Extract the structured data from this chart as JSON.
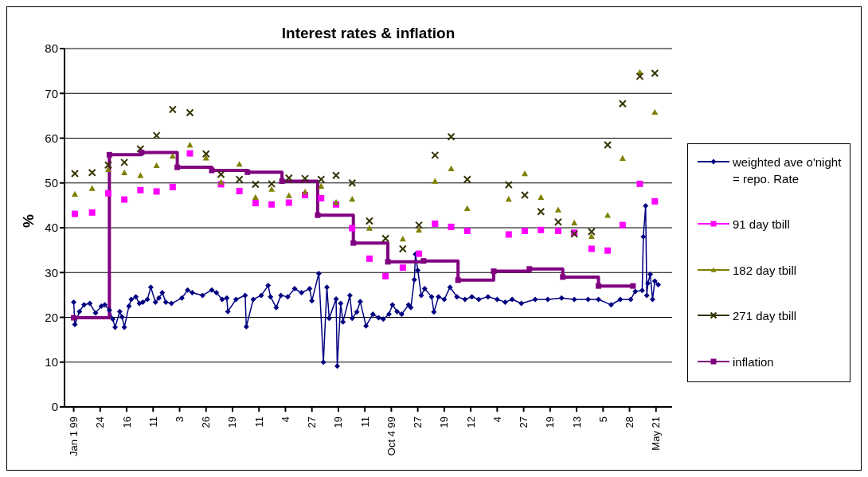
{
  "chart_data": {
    "type": "line",
    "title": "Interest rates & inflation",
    "ylabel": "%",
    "xlim": [
      "1998-12-24",
      "2000-06-04"
    ],
    "xticks": [
      {
        "value": "1999-01-01",
        "label": "Jan 1 99"
      },
      {
        "value": "1999-01-24",
        "label": "24"
      },
      {
        "value": "1999-02-16",
        "label": "16"
      },
      {
        "value": "1999-03-11",
        "label": "11"
      },
      {
        "value": "1999-04-03",
        "label": "3"
      },
      {
        "value": "1999-04-26",
        "label": "26"
      },
      {
        "value": "1999-05-19",
        "label": "19"
      },
      {
        "value": "1999-06-11",
        "label": "11"
      },
      {
        "value": "1999-07-04",
        "label": "4"
      },
      {
        "value": "1999-07-27",
        "label": "27"
      },
      {
        "value": "1999-08-19",
        "label": "19"
      },
      {
        "value": "1999-09-11",
        "label": "11"
      },
      {
        "value": "1999-10-04",
        "label": "Oct 4 99"
      },
      {
        "value": "1999-10-27",
        "label": "27"
      },
      {
        "value": "1999-11-19",
        "label": "19"
      },
      {
        "value": "1999-12-12",
        "label": "12"
      },
      {
        "value": "2000-01-04",
        "label": "4"
      },
      {
        "value": "2000-01-27",
        "label": "27"
      },
      {
        "value": "2000-02-19",
        "label": "19"
      },
      {
        "value": "2000-03-13",
        "label": "13"
      },
      {
        "value": "2000-04-05",
        "label": "5"
      },
      {
        "value": "2000-04-28",
        "label": "28"
      },
      {
        "value": "2000-05-21",
        "label": "May 21"
      }
    ],
    "ylim": [
      0,
      80
    ],
    "yticks": [
      0,
      10,
      20,
      30,
      40,
      50,
      60,
      70,
      80
    ],
    "grid": "y",
    "legend": "right",
    "series": [
      {
        "name": "weighted ave o'night = repo. Rate",
        "type": "line",
        "marker": "diamond",
        "color": "#000080",
        "x": [
          "1999-01-01",
          "1999-01-02",
          "1999-01-06",
          "1999-01-10",
          "1999-01-15",
          "1999-01-20",
          "1999-01-25",
          "1999-01-28",
          "1999-02-01",
          "1999-02-04",
          "1999-02-06",
          "1999-02-10",
          "1999-02-12",
          "1999-02-14",
          "1999-02-18",
          "1999-02-20",
          "1999-02-24",
          "1999-02-27",
          "1999-03-02",
          "1999-03-06",
          "1999-03-09",
          "1999-03-13",
          "1999-03-16",
          "1999-03-19",
          "1999-03-22",
          "1999-03-27",
          "1999-04-05",
          "1999-04-10",
          "1999-04-14",
          "1999-04-23",
          "1999-05-01",
          "1999-05-05",
          "1999-05-10",
          "1999-05-14",
          "1999-05-15",
          "1999-05-22",
          "1999-05-30",
          "1999-05-31",
          "1999-06-06",
          "1999-06-13",
          "1999-06-19",
          "1999-06-21",
          "1999-06-26",
          "1999-06-30",
          "1999-07-06",
          "1999-07-12",
          "1999-07-18",
          "1999-07-25",
          "1999-07-27",
          "1999-08-02",
          "1999-08-06",
          "1999-08-09",
          "1999-08-11",
          "1999-08-17",
          "1999-08-18",
          "1999-08-21",
          "1999-08-23",
          "1999-08-29",
          "1999-08-31",
          "1999-09-04",
          "1999-09-07",
          "1999-09-12",
          "1999-09-18",
          "1999-09-23",
          "1999-09-27",
          "1999-10-02",
          "1999-10-05",
          "1999-10-09",
          "1999-10-13",
          "1999-10-19",
          "1999-10-21",
          "1999-10-24",
          "1999-10-25",
          "1999-10-27",
          "1999-10-30",
          "1999-11-02",
          "1999-11-08",
          "1999-11-10",
          "1999-11-14",
          "1999-11-19",
          "1999-11-24",
          "1999-11-30",
          "1999-12-07",
          "1999-12-13",
          "1999-12-19",
          "1999-12-27",
          "2000-01-04",
          "2000-01-11",
          "2000-01-17",
          "2000-01-25",
          "2000-02-06",
          "2000-02-17",
          "2000-02-29",
          "2000-03-11",
          "2000-03-23",
          "2000-04-01",
          "2000-04-12",
          "2000-04-20",
          "2000-04-29",
          "2000-05-03",
          "2000-05-09",
          "2000-05-10",
          "2000-05-12",
          "2000-05-13",
          "2000-05-14",
          "2000-05-16",
          "2000-05-18",
          "2000-05-20",
          "2000-05-23"
        ],
        "values": [
          23.4,
          18.4,
          21.3,
          22.8,
          23.1,
          21.0,
          22.5,
          22.8,
          21.6,
          19.6,
          17.8,
          21.3,
          20.1,
          17.8,
          22.5,
          24.0,
          24.6,
          23.1,
          23.4,
          24.0,
          26.7,
          23.4,
          24.3,
          25.5,
          23.4,
          23.1,
          24.3,
          26.1,
          25.5,
          24.9,
          26.1,
          25.5,
          24.0,
          24.3,
          21.3,
          24.0,
          24.9,
          17.9,
          24.0,
          24.9,
          27.1,
          24.6,
          22.2,
          24.9,
          24.6,
          26.4,
          25.5,
          26.4,
          23.7,
          29.8,
          10.0,
          26.7,
          19.8,
          24.1,
          9.1,
          23.1,
          19.0,
          24.9,
          19.8,
          21.2,
          23.5,
          18.1,
          20.7,
          19.9,
          19.6,
          20.7,
          22.8,
          21.3,
          20.7,
          22.8,
          22.2,
          28.4,
          34.1,
          30.5,
          24.9,
          26.4,
          24.6,
          21.2,
          24.6,
          24.0,
          26.7,
          24.6,
          24.0,
          24.6,
          24.0,
          24.6,
          24.0,
          23.4,
          24.0,
          23.1,
          24.0,
          24.0,
          24.3,
          24.0,
          24.0,
          24.0,
          22.8,
          24.0,
          24.0,
          25.8,
          26.0,
          38.0,
          44.9,
          24.9,
          27.6,
          29.6,
          24.0,
          28.1,
          27.3
        ]
      },
      {
        "name": "91 day tbill",
        "type": "scatter",
        "marker": "square",
        "color": "#ff00ff",
        "x": [
          "1999-01-02",
          "1999-01-17",
          "1999-01-31",
          "1999-02-14",
          "1999-02-28",
          "1999-03-14",
          "1999-03-28",
          "1999-04-12",
          "1999-04-26",
          "1999-05-09",
          "1999-05-25",
          "1999-06-08",
          "1999-06-22",
          "1999-07-07",
          "1999-07-21",
          "1999-08-04",
          "1999-08-17",
          "1999-08-31",
          "1999-09-15",
          "1999-09-29",
          "1999-10-14",
          "1999-10-28",
          "1999-11-11",
          "1999-11-25",
          "1999-12-09",
          "2000-01-14",
          "2000-01-28",
          "2000-02-11",
          "2000-02-26",
          "2000-03-11",
          "2000-03-26",
          "2000-04-09",
          "2000-04-22",
          "2000-05-07",
          "2000-05-20"
        ],
        "values": [
          43.1,
          43.4,
          47.7,
          46.3,
          48.4,
          48.1,
          49.1,
          56.6,
          null,
          49.7,
          48.2,
          45.5,
          45.2,
          45.6,
          47.3,
          46.6,
          45.2,
          39.9,
          33.1,
          29.2,
          31.1,
          34.2,
          40.9,
          40.2,
          39.3,
          38.5,
          39.3,
          39.5,
          39.3,
          38.9,
          35.3,
          34.9,
          40.6,
          49.8,
          45.9
        ]
      },
      {
        "name": "182 day tbill",
        "type": "scatter",
        "marker": "triangle",
        "color": "#808000",
        "x": [
          "1999-01-02",
          "1999-01-17",
          "1999-01-31",
          "1999-02-14",
          "1999-02-28",
          "1999-03-14",
          "1999-03-28",
          "1999-04-12",
          "1999-04-26",
          "1999-05-09",
          "1999-05-25",
          "1999-06-08",
          "1999-06-22",
          "1999-07-07",
          "1999-07-21",
          "1999-08-04",
          "1999-08-17",
          "1999-08-31",
          "1999-09-15",
          "1999-09-29",
          "1999-10-14",
          "1999-10-28",
          "1999-11-11",
          "1999-11-25",
          "1999-12-09",
          "2000-01-14",
          "2000-01-28",
          "2000-02-11",
          "2000-02-26",
          "2000-03-11",
          "2000-03-26",
          "2000-04-09",
          "2000-04-22",
          "2000-05-07",
          "2000-05-20"
        ],
        "values": [
          47.5,
          48.8,
          53.0,
          52.3,
          51.7,
          53.9,
          56.0,
          58.5,
          55.6,
          50.2,
          54.2,
          46.8,
          48.6,
          47.2,
          48.0,
          49.3,
          45.7,
          46.4,
          39.9,
          null,
          37.5,
          39.5,
          50.4,
          53.2,
          44.3,
          46.4,
          52.1,
          46.8,
          44.0,
          41.1,
          38.1,
          42.8,
          55.5,
          74.7,
          65.8
        ]
      },
      {
        "name": "271 day tbill",
        "type": "scatter",
        "marker": "cross",
        "color": "#333300",
        "x": [
          "1999-01-02",
          "1999-01-17",
          "1999-01-31",
          "1999-02-14",
          "1999-02-28",
          "1999-03-14",
          "1999-03-28",
          "1999-04-12",
          "1999-04-26",
          "1999-05-09",
          "1999-05-25",
          "1999-06-08",
          "1999-06-22",
          "1999-07-07",
          "1999-07-21",
          "1999-08-04",
          "1999-08-17",
          "1999-08-31",
          "1999-09-15",
          "1999-09-29",
          "1999-10-14",
          "1999-10-28",
          "1999-11-11",
          "1999-11-25",
          "1999-12-09",
          "2000-01-14",
          "2000-01-28",
          "2000-02-11",
          "2000-02-26",
          "2000-03-11",
          "2000-03-26",
          "2000-04-09",
          "2000-04-22",
          "2000-05-07",
          "2000-05-20"
        ],
        "values": [
          52.1,
          52.3,
          54.0,
          54.6,
          57.6,
          60.6,
          66.4,
          65.7,
          56.5,
          51.9,
          50.8,
          49.7,
          49.8,
          51.1,
          51.0,
          50.8,
          51.7,
          50.0,
          41.5,
          37.6,
          35.3,
          40.6,
          56.2,
          60.3,
          50.8,
          49.6,
          47.3,
          43.6,
          41.3,
          38.6,
          39.1,
          58.5,
          67.7,
          73.8,
          74.5
        ]
      },
      {
        "name": "inflation",
        "type": "step",
        "marker": "square",
        "color": "#800080",
        "x": [
          "1999-01-01",
          "1999-02-01",
          "1999-03-01",
          "1999-04-01",
          "1999-05-01",
          "1999-06-01",
          "1999-07-01",
          "1999-08-01",
          "1999-09-01",
          "1999-10-01",
          "1999-11-01",
          "1999-12-01",
          "2000-01-01",
          "2000-02-01",
          "2000-03-01",
          "2000-04-01",
          "2000-05-01"
        ],
        "values": [
          19.9,
          56.3,
          56.8,
          53.5,
          52.8,
          52.4,
          50.4,
          42.8,
          36.6,
          32.4,
          32.6,
          28.3,
          30.3,
          30.8,
          29.0,
          27.0,
          27.0
        ]
      }
    ]
  }
}
